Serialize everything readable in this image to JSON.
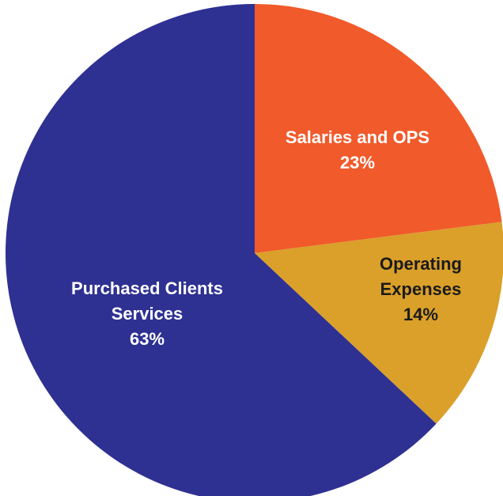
{
  "chart_data": {
    "type": "pie",
    "categories": [
      "Salaries and OPS",
      "Operating Expenses",
      "Purchased Clients Services"
    ],
    "values": [
      23,
      14,
      63
    ],
    "value_labels": [
      "23%",
      "14%",
      "63%"
    ],
    "colors": [
      "#f15a2b",
      "#daa02a",
      "#2e3192"
    ]
  }
}
